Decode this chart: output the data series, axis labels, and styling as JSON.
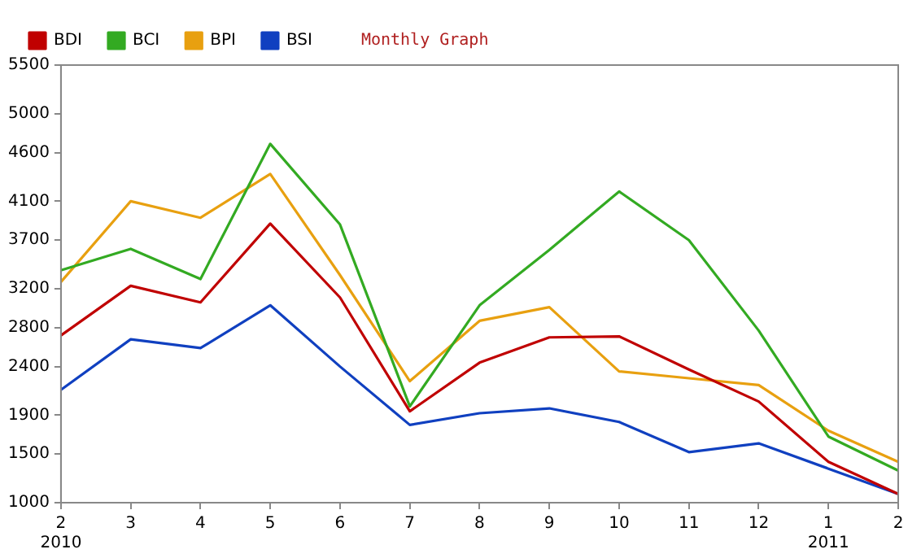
{
  "chart_data": {
    "type": "line",
    "title": "Monthly Graph",
    "categories": [
      "2\n2010",
      "3",
      "4",
      "5",
      "6",
      "7",
      "8",
      "9",
      "10",
      "11",
      "12",
      "1\n2011",
      "2"
    ],
    "series": [
      {
        "name": "BDI",
        "color": "#c00000",
        "values": [
          2720,
          3230,
          3060,
          3870,
          3110,
          1940,
          2440,
          2700,
          2710,
          2370,
          2040,
          1420,
          1090
        ]
      },
      {
        "name": "BCI",
        "color": "#33aa22",
        "values": [
          3390,
          3610,
          3300,
          4690,
          3860,
          1990,
          3030,
          3600,
          4200,
          3700,
          2770,
          1680,
          1330
        ]
      },
      {
        "name": "BPI",
        "color": "#e8a010",
        "values": [
          3270,
          4100,
          3930,
          4380,
          3340,
          2250,
          2870,
          3010,
          2350,
          2280,
          2210,
          1740,
          1420
        ]
      },
      {
        "name": "BSI",
        "color": "#1040c0",
        "values": [
          2160,
          2680,
          2590,
          3030,
          2400,
          1800,
          1920,
          1970,
          1830,
          1520,
          1610,
          1350,
          1090
        ]
      }
    ],
    "ylim": [
      1000,
      5500
    ],
    "yticks": [
      1000,
      1500,
      1900,
      2400,
      2800,
      3200,
      3700,
      4100,
      4600,
      5000,
      5500
    ],
    "grid": false,
    "legend": "top left",
    "marker": "none",
    "line_style": "solid"
  }
}
